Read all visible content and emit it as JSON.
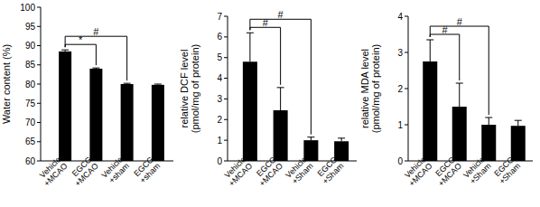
{
  "chart_data": [
    {
      "type": "bar",
      "y_label": [
        "Water content (%)"
      ],
      "categories": [
        "Vehicle +MCAO",
        "EGCG +MCAO",
        "Vehicle +sham",
        "EGCG +sham"
      ],
      "values": [
        88.5,
        84,
        80,
        79.8
      ],
      "errors": [
        0.4,
        0.2,
        0.2,
        0.2
      ],
      "color": "#000000",
      "ylim": [
        60,
        100
      ],
      "yticks": [
        60,
        65,
        70,
        75,
        80,
        85,
        90,
        95,
        100
      ],
      "significance": [
        {
          "from": 0,
          "to": 1,
          "label": "*"
        },
        {
          "from": 0,
          "to": 2,
          "label": "#"
        }
      ]
    },
    {
      "type": "bar",
      "y_label": [
        "relative DCF level",
        "(pmol/mg of protein)"
      ],
      "categories": [
        "Vehicle +MCAO",
        "EGCG +MCAO",
        "Vehicle +Sham",
        "EGCG +Sham"
      ],
      "values": [
        4.8,
        2.45,
        1.0,
        0.95
      ],
      "errors": [
        1.4,
        1.1,
        0.15,
        0.15
      ],
      "color": "#000000",
      "ylim": [
        0,
        7
      ],
      "yticks": [
        0,
        1,
        2,
        3,
        4,
        5,
        6,
        7
      ],
      "significance": [
        {
          "from": 0,
          "to": 1,
          "label": "#"
        },
        {
          "from": 0,
          "to": 2,
          "label": "#"
        }
      ]
    },
    {
      "type": "bar",
      "y_label": [
        "relative MDA level",
        "(pmol/mg of protein)"
      ],
      "categories": [
        "Vehicle +MCAO",
        "EGCG +MCAO",
        "Vehicle +Sham",
        "EGCG +Sham"
      ],
      "values": [
        2.75,
        1.5,
        1.0,
        0.97
      ],
      "errors": [
        0.6,
        0.65,
        0.2,
        0.15
      ],
      "color": "#000000",
      "ylim": [
        0,
        4
      ],
      "yticks": [
        0,
        1,
        2,
        3,
        4
      ],
      "significance": [
        {
          "from": 0,
          "to": 1,
          "label": "#"
        },
        {
          "from": 0,
          "to": 2,
          "label": "#"
        }
      ]
    }
  ]
}
